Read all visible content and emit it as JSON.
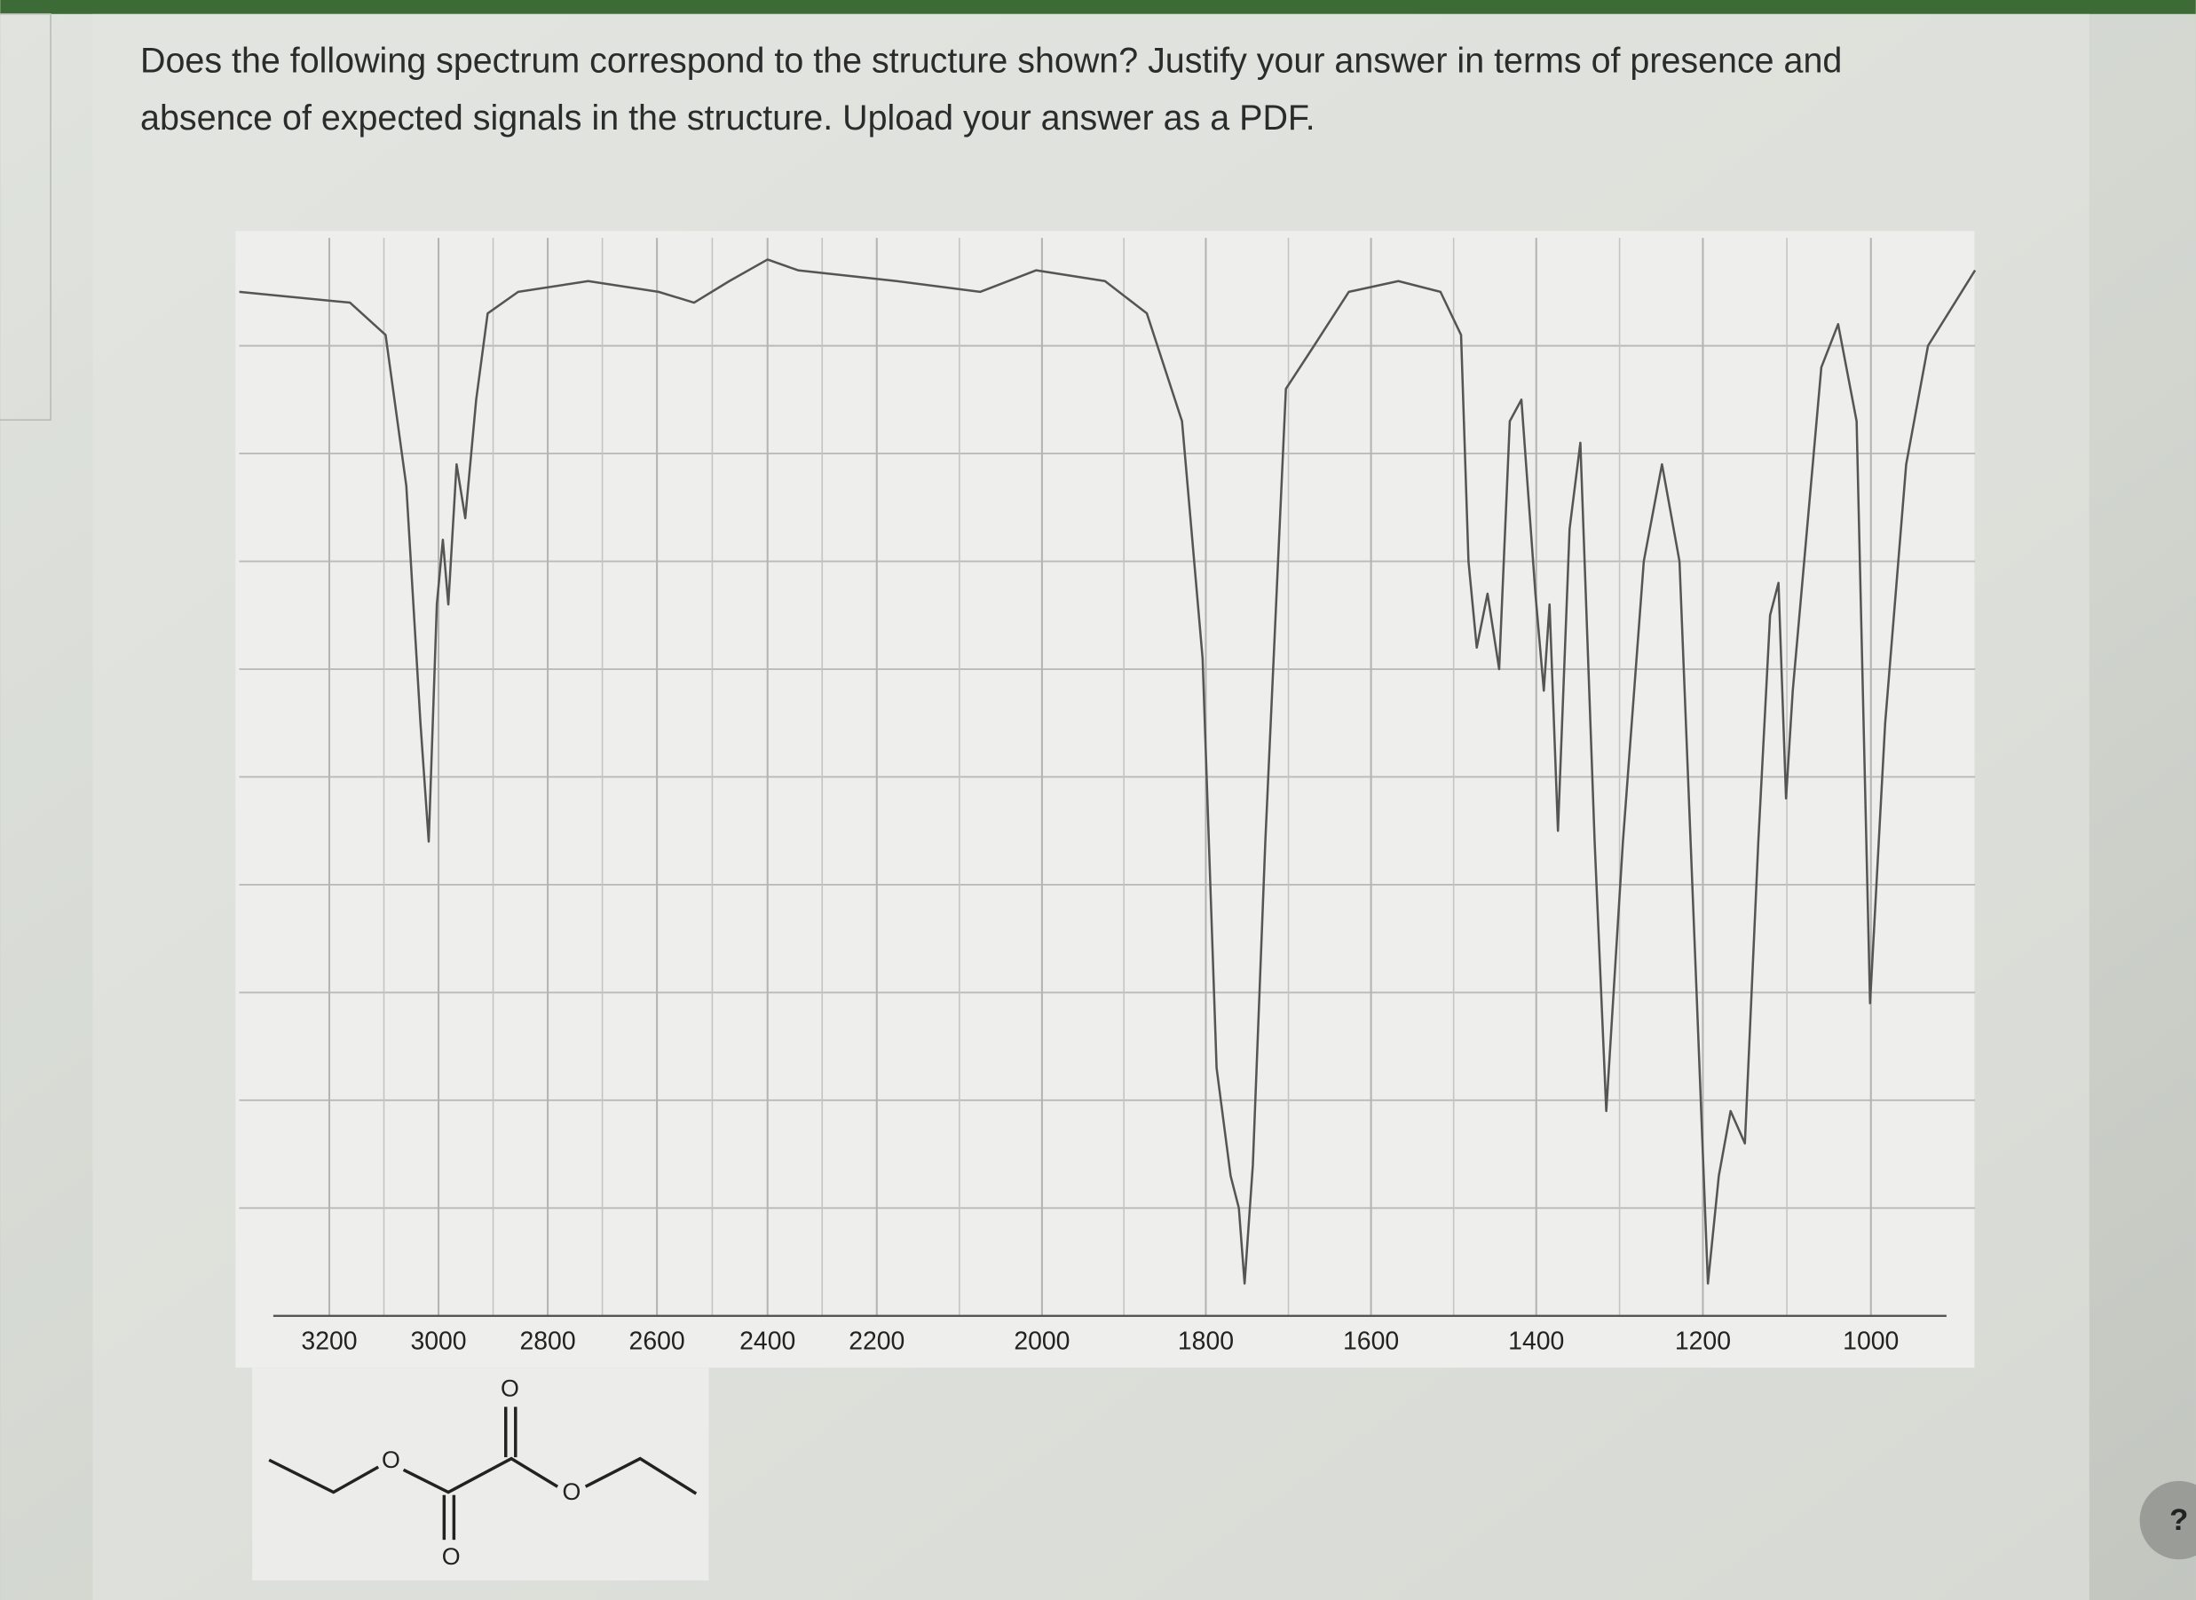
{
  "question": {
    "lines": [
      "Does the following spectrum correspond to the structure shown? Justify your answer in terms of presence and",
      "absence of expected signals in the structure. Upload your answer as a PDF."
    ]
  },
  "chart_data": {
    "type": "line",
    "color": "#555555",
    "grid": true,
    "x": [
      3365,
      3162,
      3097,
      3059,
      3033,
      3018,
      3003,
      2992,
      2982,
      2967,
      2951,
      2931,
      2910,
      2854,
      2726,
      2597,
      2533,
      2469,
      2400,
      2344,
      2176,
      2075,
      2007,
      1923,
      1872,
      1829,
      1804,
      1787,
      1770,
      1760,
      1753,
      1743,
      1728,
      1703,
      1669,
      1627,
      1567,
      1516,
      1491,
      1482,
      1472,
      1459,
      1445,
      1432,
      1418,
      1401,
      1391,
      1384,
      1374,
      1360,
      1347,
      1330,
      1316,
      1296,
      1271,
      1249,
      1228,
      1208,
      1194,
      1181,
      1167,
      1150,
      1134,
      1120,
      1110,
      1101,
      1093,
      1076,
      1059,
      1039,
      1017,
      1001,
      983,
      958,
      932,
      876
    ],
    "values": [
      95,
      94,
      91,
      77,
      55,
      44,
      66,
      72,
      66,
      79,
      74,
      85,
      93,
      95,
      96,
      95,
      94,
      96,
      98,
      97,
      96,
      95,
      97,
      96,
      93,
      83,
      61,
      23,
      13,
      10,
      3,
      14,
      44,
      86,
      90,
      95,
      96,
      95,
      91,
      70,
      62,
      67,
      60,
      83,
      85,
      67,
      58,
      66,
      45,
      73,
      81,
      44,
      19,
      44,
      70,
      79,
      70,
      31,
      3,
      13,
      19,
      16,
      44,
      65,
      68,
      48,
      58,
      73,
      88,
      92,
      83,
      29,
      55,
      79,
      90,
      97
    ],
    "xlim": [
      3365,
      876
    ],
    "ylim": [
      0,
      100
    ],
    "xticks": [
      3200,
      3000,
      2800,
      2600,
      2400,
      2200,
      2000,
      1800,
      1600,
      1400,
      1200,
      1000
    ]
  },
  "structure": {
    "atoms": [
      "O",
      "O",
      "O",
      "O"
    ]
  },
  "help": "?"
}
